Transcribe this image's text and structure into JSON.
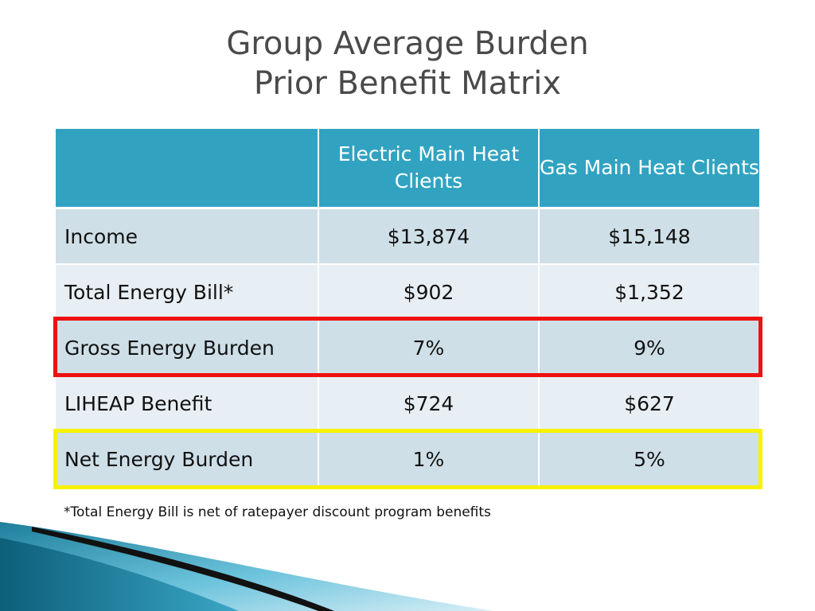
{
  "title": {
    "line1": "Group Average Burden",
    "line2": "Prior Benefit Matrix"
  },
  "table": {
    "headers": [
      "",
      "Electric Main Heat Clients",
      "Gas Main Heat Clients"
    ],
    "rows": [
      {
        "label": "Income",
        "electric": "$13,874",
        "gas": "$15,148"
      },
      {
        "label": "Total Energy Bill*",
        "electric": "$902",
        "gas": "$1,352"
      },
      {
        "label": "Gross Energy Burden",
        "electric": "7%",
        "gas": "9%"
      },
      {
        "label": "LIHEAP Benefit",
        "electric": "$724",
        "gas": "$627"
      },
      {
        "label": "Net Energy Burden",
        "electric": "1%",
        "gas": "5%"
      }
    ]
  },
  "highlights": {
    "gross_energy_burden_color": "#ee1111",
    "net_energy_burden_color": "#f7f200"
  },
  "colors": {
    "header_bg": "#31a3c1",
    "row_dark": "#cfdfe8",
    "row_light": "#e8eff4",
    "title_text": "#4a4a4a"
  },
  "footnote": "*Total Energy Bill is net of ratepayer discount program benefits"
}
